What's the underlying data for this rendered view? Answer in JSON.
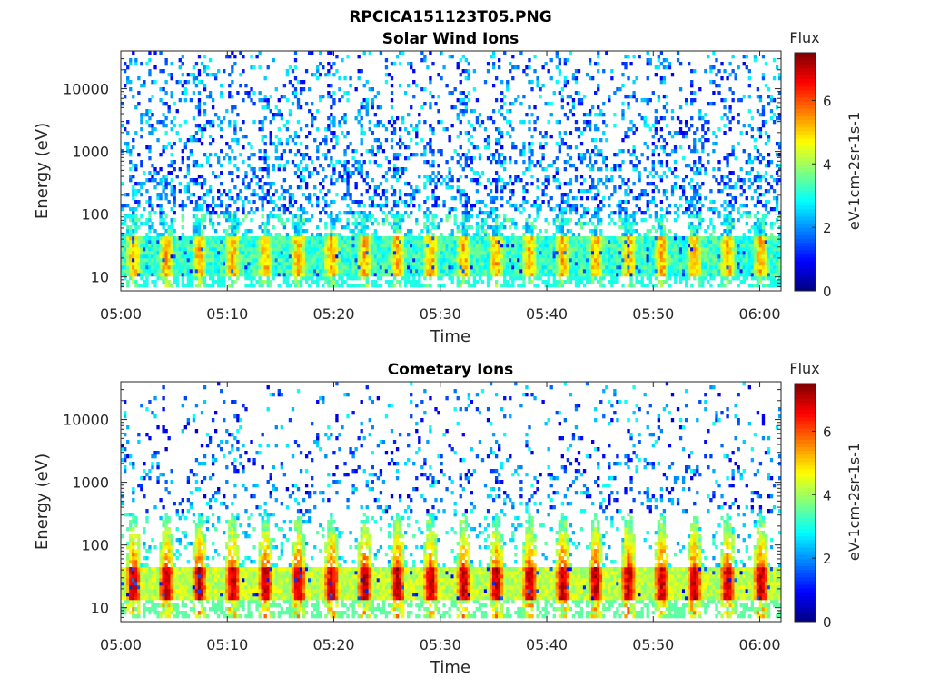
{
  "figure": {
    "filename_title": "RPCICA151123T05.PNG"
  },
  "chart_data": [
    {
      "type": "heatmap",
      "title": "Solar Wind Ions",
      "xlabel": "Time",
      "ylabel": "Energy (eV)",
      "yscale": "log",
      "x_range": [
        "05:00",
        "06:02"
      ],
      "ylim": [
        6,
        40000
      ],
      "x_ticks": [
        "05:00",
        "05:10",
        "05:20",
        "05:30",
        "05:40",
        "05:50",
        "06:00"
      ],
      "y_ticks": [
        "10",
        "100",
        "1000",
        "10000"
      ],
      "colorbar": {
        "title": "Flux",
        "label": "eV-1cm-2sr-1s-1",
        "ticks": [
          "0",
          "2",
          "4",
          "6"
        ],
        "range": [
          0,
          7.5
        ],
        "colormap": "jet"
      },
      "description": "Flux concentrated 10-50 eV peaking ~5 in bursts; sparse scattered flux 1-3 up to ~30000 eV"
    },
    {
      "type": "heatmap",
      "title": "Cometary Ions",
      "xlabel": "Time",
      "ylabel": "Energy (eV)",
      "yscale": "log",
      "x_range": [
        "05:00",
        "06:02"
      ],
      "ylim": [
        6,
        40000
      ],
      "x_ticks": [
        "05:00",
        "05:10",
        "05:20",
        "05:30",
        "05:40",
        "05:50",
        "06:00"
      ],
      "y_ticks": [
        "10",
        "100",
        "1000",
        "10000"
      ],
      "colorbar": {
        "title": "Flux",
        "label": "eV-1cm-2sr-1s-1",
        "ticks": [
          "0",
          "2",
          "4",
          "6"
        ],
        "range": [
          0,
          7.5
        ],
        "colormap": "jet"
      },
      "description": "Intense flux 15-45 eV peaking ~6.5 in periodic bursts (~3 min), tails to ~300 eV; sparse flux up to ~20000 eV"
    }
  ]
}
